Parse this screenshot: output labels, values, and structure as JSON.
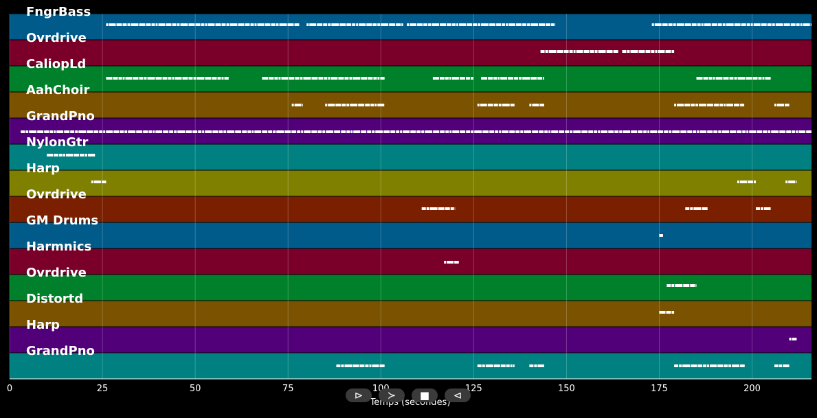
{
  "chart_data": {
    "type": "piano-roll",
    "xlabel": "Temps (secondes)",
    "xlim": [
      0,
      216
    ],
    "x_ticks": [
      0,
      25,
      50,
      75,
      100,
      125,
      150,
      175,
      200
    ],
    "grid": true,
    "tracks": [
      {
        "name": "FngrBass",
        "color": "#005b8a",
        "segments": [
          [
            26,
            78
          ],
          [
            80,
            106
          ],
          [
            107,
            147
          ],
          [
            173,
            216
          ]
        ]
      },
      {
        "name": "Ovrdrive",
        "color": "#7a002a",
        "segments": [
          [
            143,
            164
          ],
          [
            165,
            179
          ]
        ]
      },
      {
        "name": "CaliopLd",
        "color": "#00802a",
        "segments": [
          [
            26,
            59
          ],
          [
            68,
            101
          ],
          [
            114,
            125
          ],
          [
            127,
            144
          ],
          [
            185,
            205
          ]
        ]
      },
      {
        "name": "AahChoir",
        "color": "#7a5200",
        "segments": [
          [
            76,
            79
          ],
          [
            85,
            101
          ],
          [
            126,
            136
          ],
          [
            140,
            144
          ],
          [
            179,
            198
          ],
          [
            206,
            210
          ]
        ]
      },
      {
        "name": "GrandPno",
        "color": "#52007a",
        "segments": [
          [
            3,
            216
          ]
        ]
      },
      {
        "name": "NylonGtr",
        "color": "#008080",
        "segments": [
          [
            10,
            23
          ]
        ]
      },
      {
        "name": "Harp",
        "color": "#808000",
        "segments": [
          [
            22,
            26
          ],
          [
            196,
            201
          ],
          [
            209,
            212
          ]
        ]
      },
      {
        "name": "Ovrdrive",
        "color": "#7a2000",
        "segments": [
          [
            111,
            120
          ],
          [
            182,
            188
          ],
          [
            201,
            205
          ]
        ]
      },
      {
        "name": "GM Drums",
        "color": "#005b8a",
        "segments": [
          [
            175,
            176
          ]
        ]
      },
      {
        "name": "Harmnics",
        "color": "#7a002a",
        "segments": [
          [
            117,
            121
          ]
        ]
      },
      {
        "name": "Ovrdrive",
        "color": "#00802a",
        "segments": [
          [
            177,
            185
          ]
        ]
      },
      {
        "name": "Distortd",
        "color": "#7a5200",
        "segments": [
          [
            175,
            179
          ]
        ]
      },
      {
        "name": "Harp",
        "color": "#52007a",
        "segments": [
          [
            210,
            212
          ]
        ]
      },
      {
        "name": "GrandPno",
        "color": "#008080",
        "segments": [
          [
            88,
            101
          ],
          [
            126,
            136
          ],
          [
            140,
            144
          ],
          [
            179,
            198
          ],
          [
            206,
            210
          ]
        ]
      }
    ]
  },
  "controls": {
    "play_icon": "⊳",
    "forward_icon": "≻",
    "stop_icon": "■",
    "back_icon": "⊲"
  }
}
